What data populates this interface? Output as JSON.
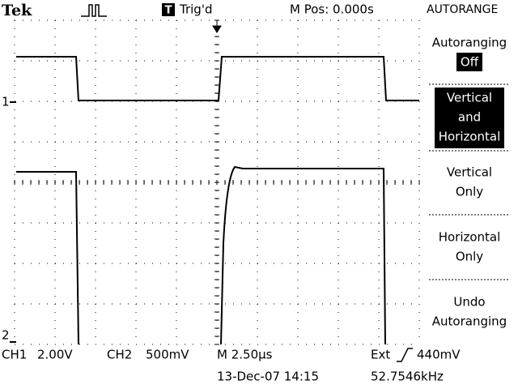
{
  "header": {
    "brand": "Tek",
    "trigger_icon": "T",
    "trigger_status": "Trig'd",
    "position": "M Pos: 0.000s",
    "menu_title": "AUTORANGE"
  },
  "menu": {
    "items": [
      {
        "lines": [
          "Autoranging"
        ],
        "state": "Off"
      },
      {
        "lines": [
          "Vertical",
          "and",
          "Horizontal"
        ]
      },
      {
        "lines": [
          "Vertical",
          "Only"
        ]
      },
      {
        "lines": [
          "Horizontal",
          "Only"
        ]
      },
      {
        "lines": [
          "Undo",
          "Autoranging"
        ]
      }
    ]
  },
  "markers": {
    "ch1": "1",
    "ch2": "2"
  },
  "footer": {
    "ch1": "CH1",
    "ch1_scale": "2.00V",
    "ch2": "CH2",
    "ch2_scale": "500mV",
    "timebase": "M 2.50µs",
    "trigger_source": "Ext",
    "trigger_level": "440mV",
    "datetime": "13-Dec-07 14:15",
    "frequency": "52.7546kHz"
  }
}
